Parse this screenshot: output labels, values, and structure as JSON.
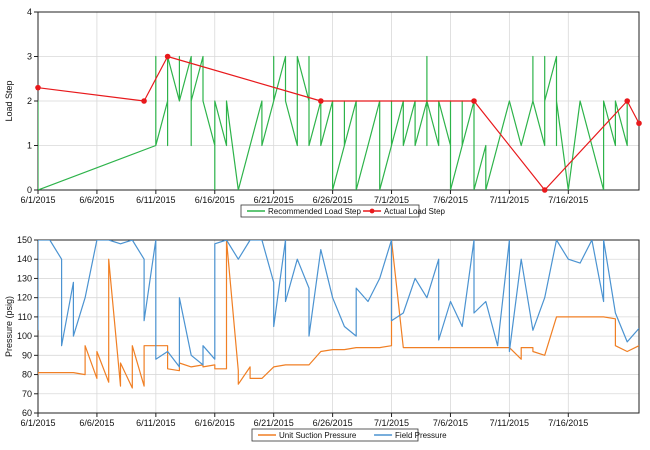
{
  "chart_data": [
    {
      "type": "line",
      "title": "",
      "xlabel": "",
      "ylabel": "Load Step",
      "ylim": [
        0,
        4
      ],
      "yticks": [
        0,
        1,
        2,
        3,
        4
      ],
      "xlim": [
        "2015-06-01",
        "2015-07-22"
      ],
      "xticks": [
        "6/1/2015",
        "6/6/2015",
        "6/11/2015",
        "6/16/2015",
        "6/21/2015",
        "6/26/2015",
        "7/1/2015",
        "7/6/2015",
        "7/11/2015",
        "7/16/2015"
      ],
      "grid": true,
      "legend_position": "bottom",
      "series": [
        {
          "name": "Recommended Load Step",
          "color": "#2db34a",
          "x": [
            "2015-06-01",
            "2015-06-01",
            "2015-06-01",
            "2015-06-01",
            "2015-06-01",
            "2015-06-01",
            "2015-06-11",
            "2015-06-11",
            "2015-06-11",
            "2015-06-11",
            "2015-06-11",
            "2015-06-11",
            "2015-06-11",
            "2015-06-11",
            "2015-06-12",
            "2015-06-12",
            "2015-06-12",
            "2015-06-12",
            "2015-06-12",
            "2015-06-12",
            "2015-06-13",
            "2015-06-13",
            "2015-06-13",
            "2015-06-13",
            "2015-06-13",
            "2015-06-14",
            "2015-06-14",
            "2015-06-14",
            "2015-06-14",
            "2015-06-14",
            "2015-06-14",
            "2015-06-15",
            "2015-06-15",
            "2015-06-15",
            "2015-06-15",
            "2015-06-16",
            "2015-06-16",
            "2015-06-16",
            "2015-06-17",
            "2015-06-17",
            "2015-06-18",
            "2015-06-19",
            "2015-06-20",
            "2015-06-20",
            "2015-06-21",
            "2015-06-21",
            "2015-06-21",
            "2015-06-21",
            "2015-06-21",
            "2015-06-22",
            "2015-06-22",
            "2015-06-22",
            "2015-06-22",
            "2015-06-23",
            "2015-06-23",
            "2015-06-23",
            "2015-06-23",
            "2015-06-24",
            "2015-06-24",
            "2015-06-24",
            "2015-06-24",
            "2015-06-25",
            "2015-06-25",
            "2015-06-25",
            "2015-06-25",
            "2015-06-25",
            "2015-06-26",
            "2015-06-26",
            "2015-06-26",
            "2015-06-26",
            "2015-06-26",
            "2015-06-27",
            "2015-06-27",
            "2015-06-27",
            "2015-06-28",
            "2015-06-28",
            "2015-06-29",
            "2015-06-30",
            "2015-06-30",
            "2015-07-01",
            "2015-07-01",
            "2015-07-01",
            "2015-07-02",
            "2015-07-02",
            "2015-07-02",
            "2015-07-02",
            "2015-07-03",
            "2015-07-03",
            "2015-07-03",
            "2015-07-03",
            "2015-07-04",
            "2015-07-04",
            "2015-07-04",
            "2015-07-04",
            "2015-07-05",
            "2015-07-05",
            "2015-07-06",
            "2015-07-06",
            "2015-07-06",
            "2015-07-06",
            "2015-07-07",
            "2015-07-07",
            "2015-07-07",
            "2015-07-08",
            "2015-07-08",
            "2015-07-08",
            "2015-07-09",
            "2015-07-09",
            "2015-07-10",
            "2015-07-11",
            "2015-07-12",
            "2015-07-13",
            "2015-07-13",
            "2015-07-13",
            "2015-07-13",
            "2015-07-14",
            "2015-07-14",
            "2015-07-14",
            "2015-07-14",
            "2015-07-14",
            "2015-07-14",
            "2015-07-15",
            "2015-07-15",
            "2015-07-15",
            "2015-07-16",
            "2015-07-17",
            "2015-07-18",
            "2015-07-19",
            "2015-07-19",
            "2015-07-20",
            "2015-07-20",
            "2015-07-20",
            "2015-07-20",
            "2015-07-21",
            "2015-07-21",
            "2015-07-21",
            "2015-07-21"
          ],
          "y": [
            1,
            2,
            1,
            2,
            0,
            0,
            1,
            1,
            2,
            3,
            1,
            2,
            3,
            1,
            2,
            3,
            3,
            2,
            1,
            3,
            2,
            3,
            2,
            3,
            2,
            3,
            2,
            3,
            1,
            3,
            2,
            3,
            2,
            3,
            2,
            1,
            0,
            2,
            1,
            2,
            0,
            1,
            2,
            1,
            2,
            3,
            2,
            3,
            2,
            3,
            2,
            3,
            2,
            1,
            3,
            2,
            3,
            2,
            3,
            2,
            1,
            2,
            1,
            2,
            1,
            1,
            2,
            1,
            2,
            1,
            0,
            1,
            2,
            1,
            2,
            0,
            1,
            2,
            0,
            1,
            2,
            1,
            2,
            1,
            2,
            1,
            2,
            1,
            2,
            1,
            2,
            3,
            1,
            2,
            1,
            2,
            1,
            2,
            1,
            0,
            1,
            2,
            1,
            2,
            1,
            0,
            1,
            0,
            1,
            2,
            1,
            2,
            3,
            3,
            2,
            1,
            2,
            3,
            2,
            3,
            2,
            3,
            1,
            2,
            0,
            2,
            1,
            0,
            2,
            1,
            2,
            1,
            2,
            1,
            2,
            1,
            1
          ]
        },
        {
          "name": "Actual Load Step",
          "color": "#e8191c",
          "x": [
            "2015-06-01",
            "2015-06-10",
            "2015-06-12",
            "2015-06-25",
            "2015-07-08",
            "2015-07-14",
            "2015-07-21",
            "2015-07-22"
          ],
          "y": [
            2.3,
            2.0,
            3.0,
            2.0,
            2.0,
            0.0,
            2.0,
            1.5
          ]
        }
      ]
    },
    {
      "type": "line",
      "title": "",
      "xlabel": "",
      "ylabel": "Pressure (psig)",
      "ylim": [
        60,
        150
      ],
      "yticks": [
        60,
        70,
        80,
        90,
        100,
        110,
        120,
        130,
        140,
        150
      ],
      "xlim": [
        "2015-06-01",
        "2015-07-22"
      ],
      "xticks": [
        "6/1/2015",
        "6/6/2015",
        "6/11/2015",
        "6/16/2015",
        "6/21/2015",
        "6/26/2015",
        "7/1/2015",
        "7/6/2015",
        "7/11/2015",
        "7/16/2015"
      ],
      "grid": true,
      "legend_position": "bottom",
      "series": [
        {
          "name": "Unit Suction Pressure",
          "color": "#f07f24",
          "x": [
            "2015-06-01",
            "2015-06-01",
            "2015-06-02",
            "2015-06-03",
            "2015-06-04",
            "2015-06-05",
            "2015-06-05",
            "2015-06-06",
            "2015-06-06",
            "2015-06-07",
            "2015-06-07",
            "2015-06-08",
            "2015-06-08",
            "2015-06-09",
            "2015-06-09",
            "2015-06-10",
            "2015-06-10",
            "2015-06-11",
            "2015-06-12",
            "2015-06-12",
            "2015-06-13",
            "2015-06-13",
            "2015-06-14",
            "2015-06-15",
            "2015-06-15",
            "2015-06-16",
            "2015-06-16",
            "2015-06-17",
            "2015-06-17",
            "2015-06-18",
            "2015-06-18",
            "2015-06-19",
            "2015-06-19",
            "2015-06-20",
            "2015-06-21",
            "2015-06-22",
            "2015-06-23",
            "2015-06-24",
            "2015-06-25",
            "2015-06-26",
            "2015-06-27",
            "2015-06-28",
            "2015-06-29",
            "2015-06-30",
            "2015-07-01",
            "2015-07-01",
            "2015-07-02",
            "2015-07-03",
            "2015-07-04",
            "2015-07-05",
            "2015-07-06",
            "2015-07-07",
            "2015-07-08",
            "2015-07-09",
            "2015-07-10",
            "2015-07-11",
            "2015-07-12",
            "2015-07-12",
            "2015-07-13",
            "2015-07-13",
            "2015-07-14",
            "2015-07-15",
            "2015-07-16",
            "2015-07-17",
            "2015-07-18",
            "2015-07-19",
            "2015-07-20",
            "2015-07-20",
            "2015-07-21",
            "2015-07-22"
          ],
          "y": [
            80,
            81,
            81,
            81,
            81,
            80,
            95,
            78,
            92,
            76,
            140,
            74,
            86,
            73,
            95,
            74,
            95,
            95,
            95,
            83,
            82,
            86,
            84,
            85,
            84,
            85,
            83,
            83,
            150,
            82,
            75,
            84,
            78,
            78,
            84,
            85,
            85,
            85,
            92,
            93,
            93,
            94,
            94,
            94,
            95,
            150,
            94,
            94,
            94,
            94,
            94,
            94,
            94,
            94,
            94,
            94,
            88,
            94,
            94,
            92,
            90,
            110,
            110,
            110,
            110,
            110,
            109,
            95,
            92,
            95
          ]
        },
        {
          "name": "Field Pressure",
          "color": "#4b93d1",
          "x": [
            "2015-06-01",
            "2015-06-01",
            "2015-06-02",
            "2015-06-03",
            "2015-06-03",
            "2015-06-04",
            "2015-06-04",
            "2015-06-05",
            "2015-06-06",
            "2015-06-07",
            "2015-06-08",
            "2015-06-09",
            "2015-06-10",
            "2015-06-10",
            "2015-06-11",
            "2015-06-11",
            "2015-06-12",
            "2015-06-13",
            "2015-06-13",
            "2015-06-14",
            "2015-06-15",
            "2015-06-15",
            "2015-06-16",
            "2015-06-16",
            "2015-06-17",
            "2015-06-18",
            "2015-06-19",
            "2015-06-20",
            "2015-06-21",
            "2015-06-21",
            "2015-06-22",
            "2015-06-22",
            "2015-06-23",
            "2015-06-24",
            "2015-06-24",
            "2015-06-25",
            "2015-06-26",
            "2015-06-27",
            "2015-06-28",
            "2015-06-28",
            "2015-06-29",
            "2015-06-30",
            "2015-07-01",
            "2015-07-01",
            "2015-07-02",
            "2015-07-03",
            "2015-07-04",
            "2015-07-05",
            "2015-07-05",
            "2015-07-06",
            "2015-07-07",
            "2015-07-08",
            "2015-07-08",
            "2015-07-09",
            "2015-07-10",
            "2015-07-11",
            "2015-07-11",
            "2015-07-12",
            "2015-07-13",
            "2015-07-14",
            "2015-07-15",
            "2015-07-16",
            "2015-07-17",
            "2015-07-18",
            "2015-07-19",
            "2015-07-19",
            "2015-07-20",
            "2015-07-21",
            "2015-07-22"
          ],
          "y": [
            103,
            150,
            150,
            140,
            95,
            128,
            100,
            120,
            150,
            150,
            148,
            150,
            140,
            108,
            150,
            88,
            92,
            84,
            120,
            90,
            85,
            95,
            88,
            148,
            150,
            140,
            150,
            150,
            128,
            105,
            150,
            118,
            140,
            125,
            100,
            145,
            120,
            105,
            100,
            125,
            118,
            130,
            150,
            108,
            112,
            130,
            120,
            140,
            98,
            118,
            105,
            150,
            112,
            118,
            95,
            150,
            92,
            140,
            103,
            120,
            150,
            140,
            138,
            150,
            118,
            150,
            112,
            97,
            104
          ]
        }
      ]
    }
  ]
}
